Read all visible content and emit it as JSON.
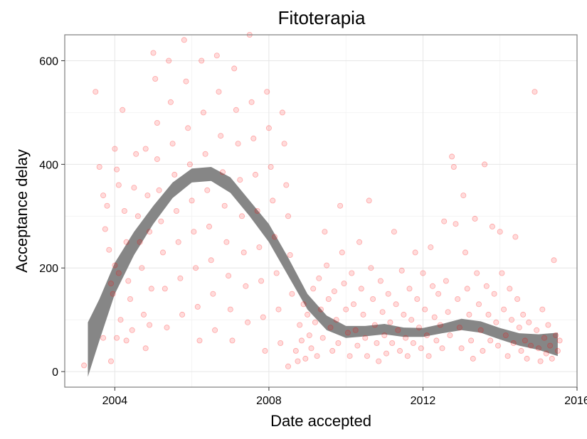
{
  "chart_data": {
    "type": "scatter",
    "title": "Fitoterapia",
    "xlabel": "Date accepted",
    "ylabel": "Acceptance delay",
    "xlim": [
      2002.7,
      2016.0
    ],
    "ylim": [
      -30,
      650
    ],
    "x_ticks": [
      2004,
      2008,
      2012,
      2016
    ],
    "y_ticks": [
      0,
      200,
      400,
      600
    ],
    "grid": true,
    "legend": "none",
    "point_color": "#ff0000",
    "band_color": "#7f7f7f",
    "smooth_band": [
      {
        "x": 2003.3,
        "lo": -10,
        "hi": 95
      },
      {
        "x": 2003.6,
        "lo": 60,
        "hi": 140
      },
      {
        "x": 2004.0,
        "lo": 150,
        "hi": 210
      },
      {
        "x": 2004.5,
        "lo": 225,
        "hi": 270
      },
      {
        "x": 2005.0,
        "lo": 285,
        "hi": 320
      },
      {
        "x": 2005.5,
        "lo": 335,
        "hi": 365
      },
      {
        "x": 2006.0,
        "lo": 365,
        "hi": 392
      },
      {
        "x": 2006.5,
        "lo": 368,
        "hi": 395
      },
      {
        "x": 2007.0,
        "lo": 345,
        "hi": 375
      },
      {
        "x": 2007.5,
        "lo": 300,
        "hi": 330
      },
      {
        "x": 2008.0,
        "lo": 250,
        "hi": 285
      },
      {
        "x": 2008.5,
        "lo": 185,
        "hi": 220
      },
      {
        "x": 2009.0,
        "lo": 120,
        "hi": 150
      },
      {
        "x": 2009.5,
        "lo": 80,
        "hi": 108
      },
      {
        "x": 2010.0,
        "lo": 65,
        "hi": 88
      },
      {
        "x": 2010.5,
        "lo": 68,
        "hi": 88
      },
      {
        "x": 2011.0,
        "lo": 72,
        "hi": 92
      },
      {
        "x": 2011.5,
        "lo": 67,
        "hi": 85
      },
      {
        "x": 2012.0,
        "lo": 67,
        "hi": 84
      },
      {
        "x": 2012.5,
        "lo": 74,
        "hi": 92
      },
      {
        "x": 2013.0,
        "lo": 80,
        "hi": 102
      },
      {
        "x": 2013.5,
        "lo": 75,
        "hi": 97
      },
      {
        "x": 2014.0,
        "lo": 62,
        "hi": 84
      },
      {
        "x": 2014.5,
        "lo": 50,
        "hi": 74
      },
      {
        "x": 2015.0,
        "lo": 42,
        "hi": 72
      },
      {
        "x": 2015.5,
        "lo": 30,
        "hi": 75
      }
    ],
    "points": [
      [
        2003.2,
        12
      ],
      [
        2003.5,
        540
      ],
      [
        2003.6,
        395
      ],
      [
        2003.7,
        340
      ],
      [
        2003.75,
        275
      ],
      [
        2003.8,
        320
      ],
      [
        2003.85,
        235
      ],
      [
        2003.9,
        170
      ],
      [
        2003.95,
        150
      ],
      [
        2003.7,
        65
      ],
      [
        2003.9,
        20
      ],
      [
        2004.0,
        430
      ],
      [
        2004.05,
        390
      ],
      [
        2004.1,
        360
      ],
      [
        2004.0,
        205
      ],
      [
        2004.1,
        190
      ],
      [
        2004.15,
        100
      ],
      [
        2004.05,
        65
      ],
      [
        2004.2,
        505
      ],
      [
        2004.25,
        310
      ],
      [
        2004.3,
        250
      ],
      [
        2004.35,
        175
      ],
      [
        2004.3,
        60
      ],
      [
        2004.4,
        140
      ],
      [
        2004.45,
        80
      ],
      [
        2004.5,
        355
      ],
      [
        2004.55,
        420
      ],
      [
        2004.6,
        300
      ],
      [
        2004.65,
        250
      ],
      [
        2004.7,
        200
      ],
      [
        2004.75,
        110
      ],
      [
        2004.8,
        45
      ],
      [
        2004.8,
        430
      ],
      [
        2004.85,
        340
      ],
      [
        2004.9,
        270
      ],
      [
        2004.95,
        160
      ],
      [
        2004.9,
        90
      ],
      [
        2005.0,
        615
      ],
      [
        2005.05,
        565
      ],
      [
        2005.1,
        480
      ],
      [
        2005.1,
        410
      ],
      [
        2005.15,
        350
      ],
      [
        2005.2,
        290
      ],
      [
        2005.25,
        230
      ],
      [
        2005.3,
        160
      ],
      [
        2005.35,
        85
      ],
      [
        2005.4,
        600
      ],
      [
        2005.45,
        520
      ],
      [
        2005.5,
        440
      ],
      [
        2005.55,
        380
      ],
      [
        2005.6,
        310
      ],
      [
        2005.65,
        250
      ],
      [
        2005.7,
        180
      ],
      [
        2005.75,
        110
      ],
      [
        2005.8,
        640
      ],
      [
        2005.85,
        560
      ],
      [
        2005.9,
        470
      ],
      [
        2005.95,
        400
      ],
      [
        2006.0,
        330
      ],
      [
        2006.05,
        270
      ],
      [
        2006.1,
        200
      ],
      [
        2006.15,
        125
      ],
      [
        2006.2,
        60
      ],
      [
        2006.25,
        600
      ],
      [
        2006.3,
        500
      ],
      [
        2006.35,
        420
      ],
      [
        2006.4,
        350
      ],
      [
        2006.45,
        280
      ],
      [
        2006.5,
        215
      ],
      [
        2006.55,
        150
      ],
      [
        2006.6,
        80
      ],
      [
        2006.65,
        610
      ],
      [
        2006.7,
        540
      ],
      [
        2006.75,
        455
      ],
      [
        2006.8,
        385
      ],
      [
        2006.85,
        320
      ],
      [
        2006.9,
        250
      ],
      [
        2006.95,
        185
      ],
      [
        2007.0,
        120
      ],
      [
        2007.05,
        60
      ],
      [
        2007.1,
        585
      ],
      [
        2007.15,
        505
      ],
      [
        2007.2,
        440
      ],
      [
        2007.25,
        370
      ],
      [
        2007.3,
        300
      ],
      [
        2007.35,
        230
      ],
      [
        2007.4,
        165
      ],
      [
        2007.45,
        95
      ],
      [
        2007.5,
        650
      ],
      [
        2007.55,
        520
      ],
      [
        2007.6,
        450
      ],
      [
        2007.65,
        380
      ],
      [
        2007.7,
        310
      ],
      [
        2007.75,
        240
      ],
      [
        2007.8,
        175
      ],
      [
        2007.85,
        105
      ],
      [
        2007.9,
        40
      ],
      [
        2007.95,
        540
      ],
      [
        2008.0,
        470
      ],
      [
        2008.05,
        395
      ],
      [
        2008.1,
        330
      ],
      [
        2008.15,
        260
      ],
      [
        2008.2,
        190
      ],
      [
        2008.25,
        120
      ],
      [
        2008.3,
        55
      ],
      [
        2008.35,
        500
      ],
      [
        2008.4,
        440
      ],
      [
        2008.45,
        360
      ],
      [
        2008.5,
        300
      ],
      [
        2008.5,
        10
      ],
      [
        2008.55,
        225
      ],
      [
        2008.6,
        150
      ],
      [
        2008.7,
        40
      ],
      [
        2008.75,
        20
      ],
      [
        2008.8,
        90
      ],
      [
        2008.85,
        60
      ],
      [
        2008.9,
        130
      ],
      [
        2008.95,
        25
      ],
      [
        2009.0,
        110
      ],
      [
        2009.05,
        70
      ],
      [
        2009.1,
        45
      ],
      [
        2009.15,
        160
      ],
      [
        2009.2,
        95
      ],
      [
        2009.25,
        30
      ],
      [
        2009.3,
        180
      ],
      [
        2009.35,
        120
      ],
      [
        2009.4,
        65
      ],
      [
        2009.45,
        270
      ],
      [
        2009.5,
        205
      ],
      [
        2009.55,
        140
      ],
      [
        2009.6,
        85
      ],
      [
        2009.65,
        40
      ],
      [
        2009.7,
        155
      ],
      [
        2009.75,
        100
      ],
      [
        2009.8,
        55
      ],
      [
        2009.85,
        320
      ],
      [
        2009.9,
        230
      ],
      [
        2009.95,
        170
      ],
      [
        2010.0,
        120
      ],
      [
        2010.05,
        75
      ],
      [
        2010.1,
        30
      ],
      [
        2010.15,
        190
      ],
      [
        2010.2,
        130
      ],
      [
        2010.25,
        80
      ],
      [
        2010.3,
        50
      ],
      [
        2010.35,
        250
      ],
      [
        2010.4,
        160
      ],
      [
        2010.45,
        110
      ],
      [
        2010.5,
        65
      ],
      [
        2010.55,
        30
      ],
      [
        2010.6,
        330
      ],
      [
        2010.65,
        200
      ],
      [
        2010.7,
        140
      ],
      [
        2010.75,
        90
      ],
      [
        2010.8,
        55
      ],
      [
        2010.85,
        20
      ],
      [
        2010.9,
        175
      ],
      [
        2010.95,
        115
      ],
      [
        2011.0,
        70
      ],
      [
        2011.05,
        35
      ],
      [
        2011.1,
        150
      ],
      [
        2011.15,
        95
      ],
      [
        2011.2,
        55
      ],
      [
        2011.25,
        270
      ],
      [
        2011.3,
        130
      ],
      [
        2011.35,
        80
      ],
      [
        2011.4,
        40
      ],
      [
        2011.45,
        195
      ],
      [
        2011.5,
        110
      ],
      [
        2011.55,
        65
      ],
      [
        2011.6,
        30
      ],
      [
        2011.65,
        160
      ],
      [
        2011.7,
        100
      ],
      [
        2011.75,
        55
      ],
      [
        2011.8,
        230
      ],
      [
        2011.85,
        140
      ],
      [
        2011.9,
        85
      ],
      [
        2011.95,
        45
      ],
      [
        2012.0,
        190
      ],
      [
        2012.05,
        120
      ],
      [
        2012.1,
        70
      ],
      [
        2012.15,
        30
      ],
      [
        2012.2,
        240
      ],
      [
        2012.25,
        165
      ],
      [
        2012.3,
        105
      ],
      [
        2012.35,
        60
      ],
      [
        2012.4,
        150
      ],
      [
        2012.45,
        90
      ],
      [
        2012.5,
        45
      ],
      [
        2012.55,
        290
      ],
      [
        2012.6,
        175
      ],
      [
        2012.65,
        115
      ],
      [
        2012.7,
        70
      ],
      [
        2012.75,
        415
      ],
      [
        2012.8,
        395
      ],
      [
        2012.85,
        285
      ],
      [
        2012.9,
        140
      ],
      [
        2012.95,
        85
      ],
      [
        2013.0,
        45
      ],
      [
        2013.05,
        340
      ],
      [
        2013.1,
        230
      ],
      [
        2013.15,
        160
      ],
      [
        2013.2,
        110
      ],
      [
        2013.25,
        60
      ],
      [
        2013.3,
        25
      ],
      [
        2013.35,
        295
      ],
      [
        2013.4,
        190
      ],
      [
        2013.45,
        130
      ],
      [
        2013.5,
        80
      ],
      [
        2013.55,
        40
      ],
      [
        2013.6,
        400
      ],
      [
        2013.65,
        165
      ],
      [
        2013.7,
        110
      ],
      [
        2013.75,
        60
      ],
      [
        2013.8,
        280
      ],
      [
        2013.85,
        150
      ],
      [
        2013.9,
        95
      ],
      [
        2013.95,
        50
      ],
      [
        2014.0,
        270
      ],
      [
        2014.05,
        190
      ],
      [
        2014.1,
        120
      ],
      [
        2014.15,
        70
      ],
      [
        2014.2,
        30
      ],
      [
        2014.25,
        160
      ],
      [
        2014.3,
        100
      ],
      [
        2014.35,
        55
      ],
      [
        2014.4,
        260
      ],
      [
        2014.45,
        140
      ],
      [
        2014.5,
        85
      ],
      [
        2014.55,
        40
      ],
      [
        2014.6,
        110
      ],
      [
        2014.65,
        60
      ],
      [
        2014.7,
        25
      ],
      [
        2014.75,
        95
      ],
      [
        2014.8,
        50
      ],
      [
        2014.9,
        540
      ],
      [
        2014.95,
        80
      ],
      [
        2015.0,
        45
      ],
      [
        2015.05,
        20
      ],
      [
        2015.1,
        120
      ],
      [
        2015.15,
        65
      ],
      [
        2015.2,
        35
      ],
      [
        2015.25,
        90
      ],
      [
        2015.3,
        50
      ],
      [
        2015.35,
        25
      ],
      [
        2015.4,
        215
      ],
      [
        2015.45,
        70
      ],
      [
        2015.5,
        40
      ],
      [
        2015.55,
        60
      ]
    ]
  }
}
